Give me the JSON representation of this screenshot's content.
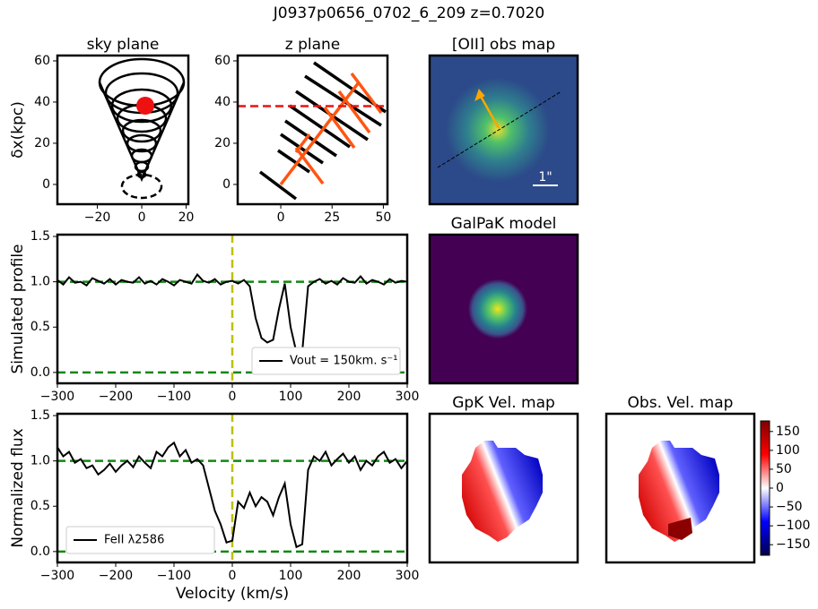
{
  "title": "J0937p0656_0702_6_209 z=0.7020",
  "chart_data": [
    {
      "type": "diagram",
      "title": "sky plane",
      "ylabel": "δx(kpc)",
      "xlim": [
        -38,
        21
      ],
      "xticks": [
        {
          "value": -20,
          "label": "−20"
        },
        0,
        20
      ],
      "ylim": [
        -9.6,
        62.6
      ],
      "yticks": [
        0,
        20,
        40,
        60
      ]
    },
    {
      "type": "diagram",
      "title": "z plane",
      "xlim": [
        -21,
        52
      ],
      "xticks": [
        0,
        25,
        50
      ],
      "ylim": [
        -9.6,
        62.6
      ],
      "yticks": [
        0,
        20,
        40,
        60
      ],
      "hline": 38,
      "hline_color": "#ee1111"
    },
    {
      "type": "image",
      "title": "[OII] obs map",
      "annotation": "1\""
    },
    {
      "type": "line",
      "ylabel": "Simulated profile",
      "xlim": [
        -300,
        300
      ],
      "xticks": [
        {
          "value": -300,
          "label": "−300"
        },
        {
          "value": -200,
          "label": "−200"
        },
        {
          "value": -100,
          "label": "−100"
        },
        0,
        100,
        200,
        300
      ],
      "ylim": [
        -0.12,
        1.52
      ],
      "yticks": [
        {
          "value": 0,
          "label": "0.0"
        },
        0.5,
        {
          "value": 1,
          "label": "1.0"
        },
        1.5
      ],
      "hlines": [
        0,
        1
      ],
      "hline_color": "#118811",
      "vline": 0,
      "vline_color": "#bfbf00",
      "legend": "lower right",
      "x": [
        -300,
        -290,
        -280,
        -270,
        -260,
        -250,
        -240,
        -230,
        -220,
        -210,
        -200,
        -190,
        -180,
        -170,
        -160,
        -150,
        -140,
        -130,
        -120,
        -110,
        -100,
        -90,
        -80,
        -70,
        -60,
        -50,
        -40,
        -30,
        -20,
        -10,
        0,
        10,
        20,
        30,
        40,
        50,
        60,
        70,
        80,
        90,
        100,
        110,
        120,
        130,
        140,
        150,
        160,
        170,
        180,
        190,
        200,
        210,
        220,
        230,
        240,
        250,
        260,
        270,
        280,
        290,
        300
      ],
      "series": [
        {
          "name": "Vout = 150km. s⁻¹",
          "color": "#000000",
          "values": [
            1.02,
            0.97,
            1.05,
            0.99,
            1.0,
            0.96,
            1.04,
            1.01,
            0.98,
            1.03,
            0.97,
            1.02,
            1.0,
            0.99,
            1.05,
            0.98,
            1.01,
            0.97,
            1.03,
            1.0,
            0.96,
            1.02,
            1.0,
            0.98,
            1.08,
            1.01,
            0.99,
            1.03,
            0.97,
            1.0,
            1.01,
            0.98,
            1.02,
            0.95,
            0.6,
            0.38,
            0.33,
            0.36,
            0.7,
            0.98,
            0.5,
            0.22,
            0.23,
            0.95,
            1.0,
            1.03,
            0.98,
            1.01,
            0.97,
            1.04,
            1.0,
            0.99,
            1.06,
            0.98,
            1.02,
            1.0,
            0.97,
            1.03,
            0.99,
            1.01,
            1.0
          ]
        }
      ]
    },
    {
      "type": "line",
      "ylabel": "Normalized flux",
      "xlabel": "Velocity (km/s)",
      "xlim": [
        -300,
        300
      ],
      "xticks": [
        {
          "value": -300,
          "label": "−300"
        },
        {
          "value": -200,
          "label": "−200"
        },
        {
          "value": -100,
          "label": "−100"
        },
        0,
        100,
        200,
        300
      ],
      "ylim": [
        -0.12,
        1.52
      ],
      "yticks": [
        {
          "value": 0,
          "label": "0.0"
        },
        0.5,
        {
          "value": 1,
          "label": "1.0"
        },
        1.5
      ],
      "hlines": [
        0,
        1
      ],
      "hline_color": "#118811",
      "vline": 0,
      "vline_color": "#bfbf00",
      "legend": "lower left",
      "x": [
        -300,
        -290,
        -280,
        -270,
        -260,
        -250,
        -240,
        -230,
        -220,
        -210,
        -200,
        -190,
        -180,
        -170,
        -160,
        -150,
        -140,
        -130,
        -120,
        -110,
        -100,
        -90,
        -80,
        -70,
        -60,
        -50,
        -40,
        -30,
        -20,
        -10,
        0,
        10,
        20,
        30,
        40,
        50,
        60,
        70,
        80,
        90,
        100,
        110,
        120,
        130,
        140,
        150,
        160,
        170,
        180,
        190,
        200,
        210,
        220,
        230,
        240,
        250,
        260,
        270,
        280,
        290,
        300
      ],
      "series": [
        {
          "name": "FeII λ2586",
          "color": "#000000",
          "values": [
            1.15,
            1.05,
            1.1,
            0.98,
            1.02,
            0.92,
            0.95,
            0.85,
            0.9,
            0.97,
            0.88,
            0.95,
            1.0,
            0.93,
            1.05,
            0.98,
            0.92,
            1.1,
            1.05,
            1.15,
            1.2,
            1.05,
            1.12,
            0.98,
            1.02,
            0.95,
            0.7,
            0.45,
            0.3,
            0.1,
            0.12,
            0.55,
            0.48,
            0.65,
            0.5,
            0.6,
            0.55,
            0.4,
            0.6,
            0.75,
            0.3,
            0.05,
            0.08,
            0.9,
            1.05,
            1.0,
            1.1,
            0.95,
            1.02,
            1.08,
            0.98,
            1.05,
            0.9,
            1.0,
            0.95,
            1.05,
            1.1,
            0.98,
            1.02,
            0.92,
            1.0
          ]
        }
      ]
    },
    {
      "type": "image",
      "title": "GalPaK model"
    },
    {
      "type": "image",
      "title": "GpK Vel. map"
    },
    {
      "type": "image",
      "title": "Obs. Vel. map",
      "colorbar": {
        "clim": [
          -178,
          178
        ],
        "ticks": [
          150,
          100,
          50,
          0,
          {
            "value": -50,
            "label": "−50"
          },
          {
            "value": -100,
            "label": "−100"
          },
          {
            "value": -150,
            "label": "−150"
          }
        ]
      }
    }
  ]
}
